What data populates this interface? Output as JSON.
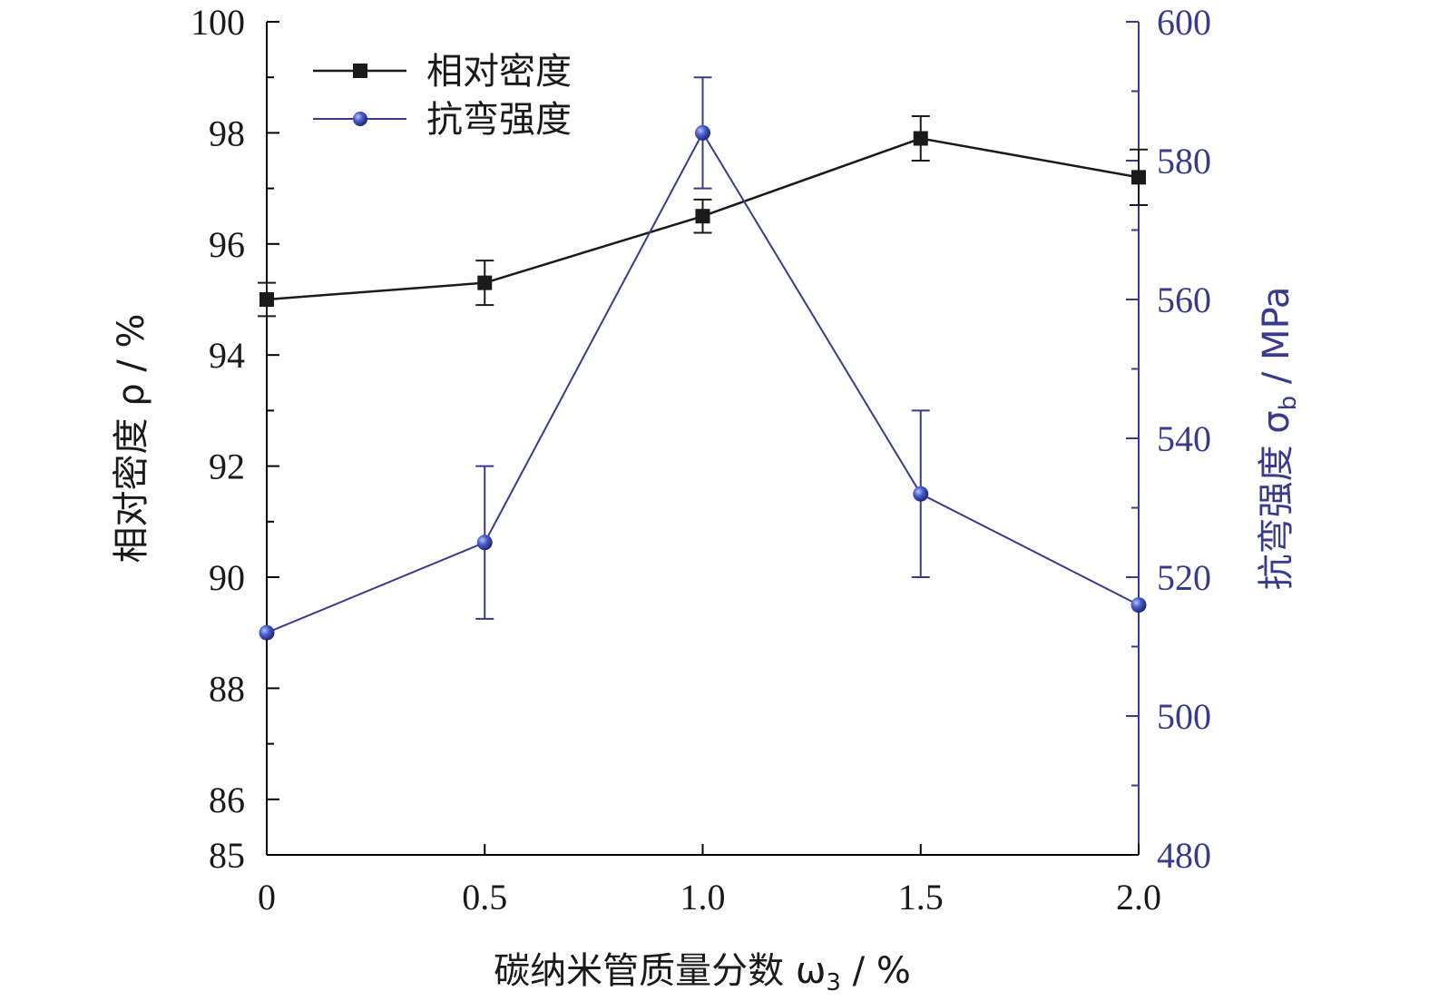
{
  "chart_data": {
    "type": "line",
    "x": [
      0,
      0.5,
      1.0,
      1.5,
      2.0
    ],
    "x_tick_labels": [
      "0",
      "0.5",
      "1.0",
      "1.5",
      "2.0"
    ],
    "xlim": [
      0,
      2.0
    ],
    "xlabel": "碳纳米管质量分数 ω",
    "xlabel_sub": "3",
    "xlabel_unit": " / %",
    "ylabel_left": "相对密度 ρ / %",
    "ylim_left": [
      85,
      100
    ],
    "y_left_ticks": [
      85,
      86,
      88,
      90,
      92,
      94,
      96,
      98,
      100
    ],
    "ylabel_right": "抗弯强度 σ",
    "ylabel_right_sub": "b",
    "ylabel_right_unit": " / MPa",
    "ylim_right": [
      480,
      600
    ],
    "y_right_ticks": [
      480,
      500,
      520,
      540,
      560,
      580,
      600
    ],
    "grid": false,
    "legend_position": "top-left",
    "series": [
      {
        "name": "相对密度",
        "axis": "left",
        "marker": "square",
        "color": "#1a1a1a",
        "values": [
          95.0,
          95.3,
          96.5,
          97.9,
          97.2
        ],
        "errors": [
          0.3,
          0.4,
          0.3,
          0.4,
          0.5
        ]
      },
      {
        "name": "抗弯强度",
        "axis": "right",
        "marker": "circle",
        "color": "#3a3a8c",
        "values": [
          512,
          525,
          584,
          532,
          516
        ],
        "errors": [
          0,
          11,
          8,
          12,
          0
        ]
      }
    ]
  }
}
